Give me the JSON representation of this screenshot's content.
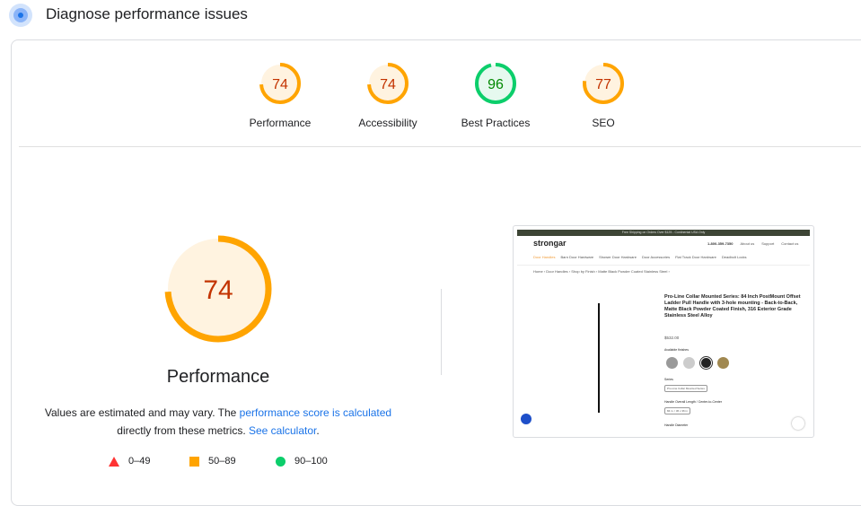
{
  "header": {
    "title": "Diagnose performance issues",
    "icon": "lighthouse-gauge-icon"
  },
  "colors": {
    "average": "#ffa400",
    "average_text": "#c33300",
    "pass": "#0cce6b",
    "pass_text": "#008800",
    "fail": "#ff3333"
  },
  "scores": [
    {
      "label": "Performance",
      "value": 74
    },
    {
      "label": "Accessibility",
      "value": 74
    },
    {
      "label": "Best Practices",
      "value": 96
    },
    {
      "label": "SEO",
      "value": 77
    }
  ],
  "main": {
    "score": 74,
    "label": "Performance",
    "note_pre": "Values are estimated and may vary. The ",
    "note_link": "performance score is calculated",
    "note_mid": " directly from these metrics. ",
    "note_link2": "See calculator",
    "note_end": "."
  },
  "legend": [
    {
      "shape": "triangle",
      "range": "0–49"
    },
    {
      "shape": "square",
      "range": "50–89"
    },
    {
      "shape": "circle",
      "range": "90–100"
    }
  ],
  "thumbnail": {
    "banner": "Free Shipping on Orders Over $125 - Continental USA Only",
    "logo": "strongar",
    "phone": "1-800-359-7350",
    "links": [
      "About us",
      "Support",
      "Contact us"
    ],
    "nav": [
      "Door Handles",
      "Barn Door Hardware",
      "Shower Door Hardware",
      "Door Accessories",
      "Flat Track Door Hardware",
      "Deadbolt Locks"
    ],
    "breadcrumb": "Home › Door Handles › Shop by Finish › Matte Black Powder Coated Stainless Steel ›",
    "product_title": "Pro-Line Collar Mounted Series: 84 Inch PostMount Offset Ladder Pull Handle with 3-hole mounting - Back-to-Back, Matte Black Powder Coated Finish, 316 Exterior Grade Stainless Steel Alloy",
    "price": "$532.00",
    "finishes_label": "Available finishes",
    "series_label": "Series",
    "series_value": "Pro-Line Collar Mounted Series",
    "length_label": "Handle Overall Length / Center-to-Center",
    "length_value": "84 in. / 36 x 36 in",
    "diameter_label": "Handle Diameter"
  }
}
